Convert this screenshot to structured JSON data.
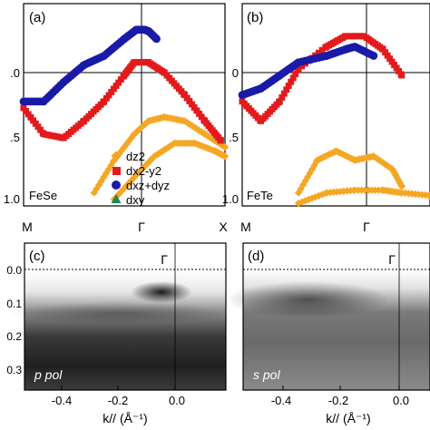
{
  "panels": {
    "a": {
      "label": "(a)",
      "material": "FeSe",
      "y_ticks": [
        ".0",
        ".5",
        "1.0"
      ],
      "x_ticks": [
        "M",
        "Γ",
        "X"
      ]
    },
    "b": {
      "label": "(b)",
      "material": "FeTe",
      "y_ticks": [
        "0",
        ".5",
        "1.0"
      ],
      "x_ticks": [
        "M",
        "Γ"
      ]
    },
    "c": {
      "label": "(c)",
      "point_label": "Γ",
      "polarization": "p pol",
      "y_ticks": [
        "0.0",
        "0.1",
        "0.2",
        "0.3"
      ],
      "x_ticks": [
        "-0.4",
        "-0.2",
        "0.0"
      ]
    },
    "d": {
      "label": "(d)",
      "point_label": "Γ",
      "polarization": "s pol",
      "y_ticks": [
        "0.0",
        "0.1",
        "0.2",
        "0.3"
      ],
      "x_ticks": [
        "-0.4",
        "-0.2",
        "0.0"
      ]
    }
  },
  "legend": [
    {
      "name": "dz2",
      "marker": "diamond",
      "color": "#f5a623"
    },
    {
      "name": "dx2-y2",
      "marker": "square",
      "color": "#e31a1c"
    },
    {
      "name": "dxz+dyz",
      "marker": "circle",
      "color": "#1a1aa8"
    },
    {
      "name": "dxy",
      "marker": "triangle",
      "color": "#1b8a5a"
    }
  ],
  "xlabel_c": "k// (Å⁻¹)",
  "xlabel_d": "k// (Å⁻¹)",
  "chart_data": [
    {
      "type": "scatter",
      "panel": "a",
      "xlim": [
        "M",
        "X"
      ],
      "ylim": [
        -1.1,
        0.45
      ],
      "series": [
        {
          "name": "dz2",
          "x": [
            0.35,
            0.45,
            0.55,
            0.62,
            0.7,
            0.8,
            0.9,
            1.0
          ],
          "y": [
            -1.0,
            -0.75,
            -0.55,
            -0.45,
            -0.42,
            -0.45,
            -0.55,
            -0.65
          ]
        },
        {
          "name": "dz2",
          "x": [
            0.45,
            0.55,
            0.65,
            0.75,
            0.85,
            0.95,
            1.0
          ],
          "y": [
            -1.05,
            -0.88,
            -0.72,
            -0.62,
            -0.62,
            -0.68,
            -0.72
          ]
        },
        {
          "name": "dx2-y2",
          "x": [
            0.0,
            0.1,
            0.2,
            0.3,
            0.4,
            0.5,
            0.55,
            0.62,
            0.7,
            0.8,
            0.9,
            0.98
          ],
          "y": [
            -0.35,
            -0.55,
            -0.58,
            -0.45,
            -0.3,
            -0.1,
            0.0,
            0.0,
            -0.08,
            -0.25,
            -0.45,
            -0.6
          ]
        },
        {
          "name": "dxz+dyz",
          "x": [
            0.0,
            0.1,
            0.2,
            0.3,
            0.4,
            0.5,
            0.56,
            0.6,
            0.62,
            0.66
          ],
          "y": [
            -0.3,
            -0.3,
            -0.15,
            -0.02,
            0.05,
            0.18,
            0.25,
            0.25,
            0.24,
            0.18
          ]
        }
      ]
    },
    {
      "type": "scatter",
      "panel": "b",
      "xlim": [
        "M",
        "Γ"
      ],
      "ylim": [
        -1.1,
        0.45
      ],
      "series": [
        {
          "name": "dz2",
          "x": [
            0.3,
            0.4,
            0.5,
            0.6,
            0.7,
            0.8,
            0.85
          ],
          "y": [
            -1.0,
            -0.75,
            -0.68,
            -0.75,
            -0.72,
            -0.82,
            -0.95
          ]
        },
        {
          "name": "dz2",
          "x": [
            0.3,
            0.45,
            0.6,
            0.75,
            0.85,
            1.0
          ],
          "y": [
            -1.08,
            -1.0,
            -0.98,
            -0.98,
            -1.0,
            -1.02
          ]
        },
        {
          "name": "dx2-y2",
          "x": [
            0.0,
            0.1,
            0.2,
            0.3,
            0.45,
            0.55,
            0.65,
            0.75,
            0.85
          ],
          "y": [
            -0.3,
            -0.45,
            -0.3,
            -0.05,
            0.12,
            0.2,
            0.2,
            0.1,
            -0.1
          ]
        },
        {
          "name": "dxz+dyz",
          "x": [
            0.0,
            0.1,
            0.2,
            0.3,
            0.45,
            0.55,
            0.6,
            0.7
          ],
          "y": [
            -0.25,
            -0.2,
            -0.1,
            0.0,
            0.05,
            0.1,
            0.12,
            0.05
          ]
        }
      ]
    }
  ]
}
